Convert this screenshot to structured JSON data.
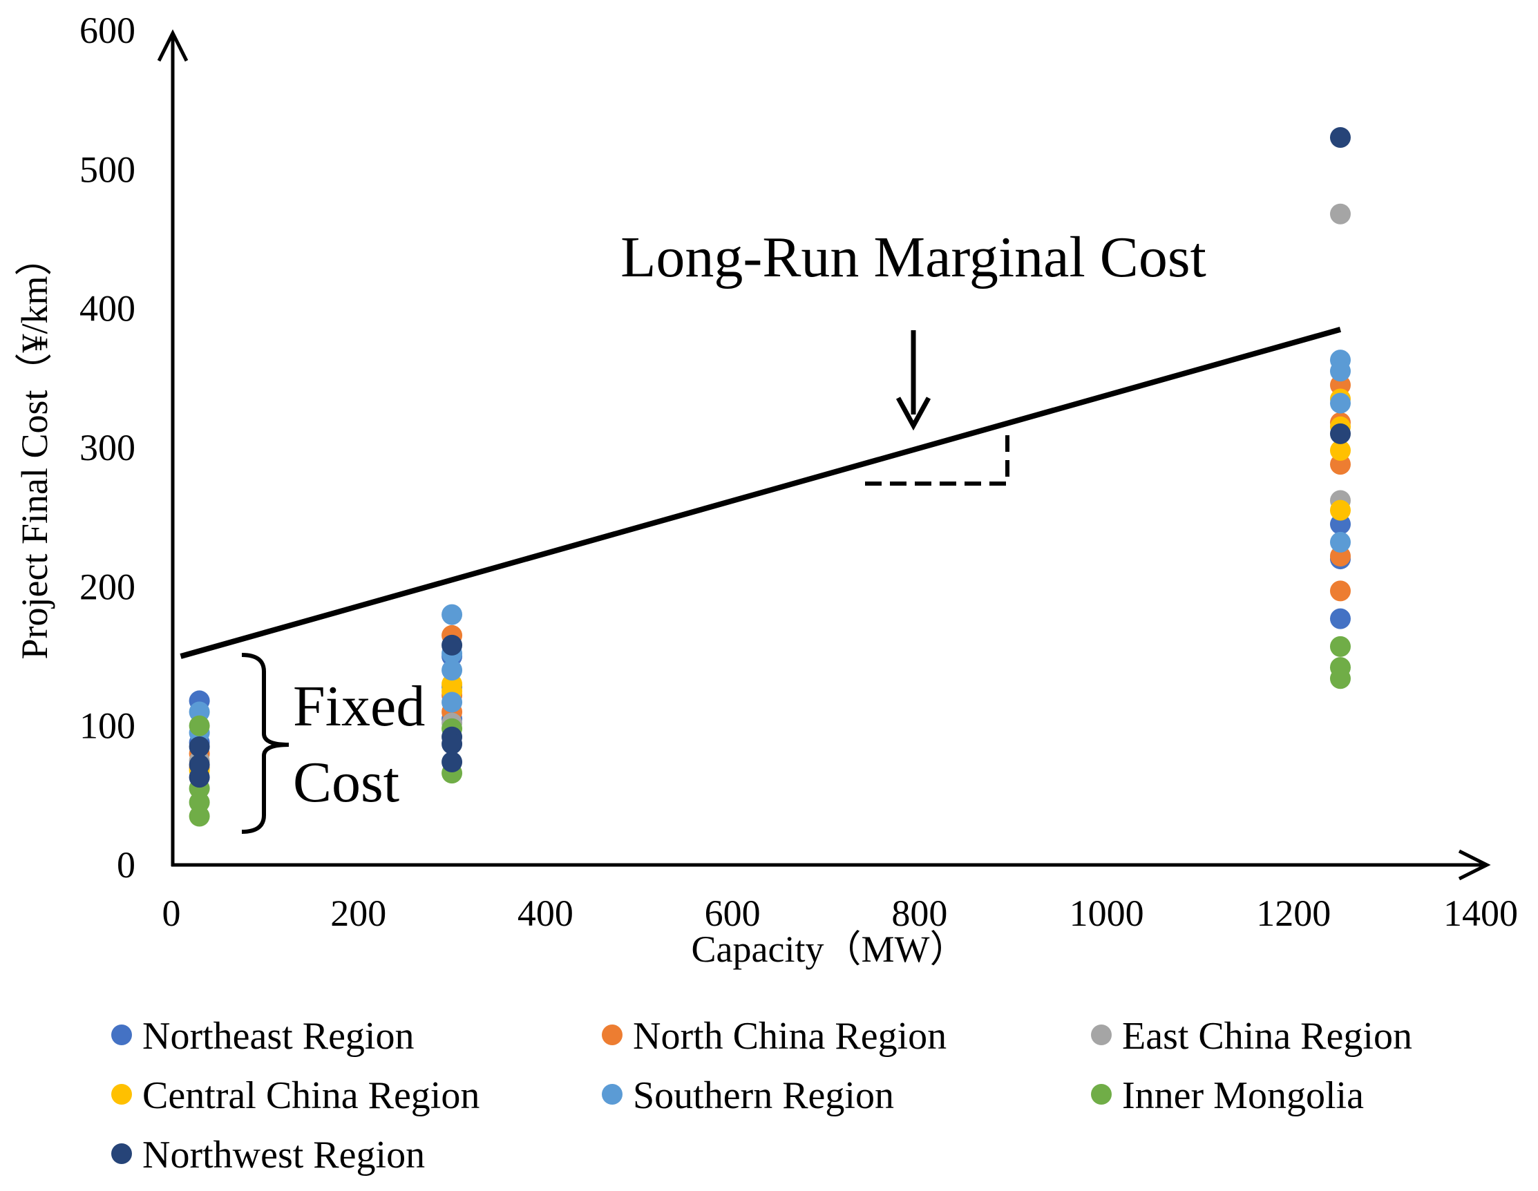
{
  "chart_data": {
    "type": "scatter",
    "xlabel": "Capacity（MW）",
    "ylabel": "Project Final Cost（¥/km）",
    "xlim": [
      0,
      1400
    ],
    "ylim": [
      0,
      600
    ],
    "x_ticks": [
      "0",
      "200",
      "400",
      "600",
      "800",
      "1000",
      "1200",
      "1400"
    ],
    "y_ticks": [
      "0",
      "100",
      "200",
      "300",
      "400",
      "500",
      "600"
    ],
    "grid": false,
    "legend_position": "bottom",
    "series": [
      {
        "name": "Northeast Region",
        "color": "#4472C4",
        "points": [
          [
            30,
            118
          ],
          [
            30,
            88
          ],
          [
            300,
            150
          ],
          [
            300,
            128
          ],
          [
            300,
            105
          ],
          [
            1250,
            245
          ],
          [
            1250,
            220
          ],
          [
            1250,
            177
          ]
        ]
      },
      {
        "name": "North China Region",
        "color": "#ED7D31",
        "points": [
          [
            30,
            80
          ],
          [
            30,
            70
          ],
          [
            300,
            165
          ],
          [
            300,
            122
          ],
          [
            300,
            110
          ],
          [
            1250,
            345
          ],
          [
            1250,
            318
          ],
          [
            1250,
            288
          ],
          [
            1250,
            222
          ],
          [
            1250,
            197
          ]
        ]
      },
      {
        "name": "East China Region",
        "color": "#A5A5A5",
        "points": [
          [
            30,
            75
          ],
          [
            300,
            102
          ],
          [
            1250,
            468
          ],
          [
            1250,
            262
          ]
        ]
      },
      {
        "name": "Central China Region",
        "color": "#FFC000",
        "points": [
          [
            30,
            68
          ],
          [
            300,
            130
          ],
          [
            300,
            125
          ],
          [
            1250,
            335
          ],
          [
            1250,
            315
          ],
          [
            1250,
            298
          ],
          [
            1250,
            255
          ]
        ]
      },
      {
        "name": "Southern Region",
        "color": "#5B9BD5",
        "points": [
          [
            30,
            110
          ],
          [
            30,
            95
          ],
          [
            300,
            180
          ],
          [
            300,
            152
          ],
          [
            300,
            140
          ],
          [
            300,
            117
          ],
          [
            1250,
            363
          ],
          [
            1250,
            355
          ],
          [
            1250,
            332
          ],
          [
            1250,
            232
          ]
        ]
      },
      {
        "name": "Inner Mongolia",
        "color": "#70AD47",
        "points": [
          [
            30,
            100
          ],
          [
            30,
            55
          ],
          [
            30,
            45
          ],
          [
            30,
            35
          ],
          [
            300,
            98
          ],
          [
            300,
            66
          ],
          [
            1250,
            157
          ],
          [
            1250,
            142
          ],
          [
            1250,
            134
          ]
        ]
      },
      {
        "name": "Northwest Region",
        "color": "#264478",
        "points": [
          [
            30,
            85
          ],
          [
            30,
            72
          ],
          [
            30,
            63
          ],
          [
            300,
            158
          ],
          [
            300,
            92
          ],
          [
            300,
            87
          ],
          [
            300,
            74
          ],
          [
            1250,
            523
          ],
          [
            1250,
            310
          ]
        ]
      }
    ],
    "lines": [
      {
        "name": "Long-Run Marginal Cost",
        "x": [
          10,
          1250
        ],
        "y": [
          150,
          385
        ]
      }
    ],
    "annotations": {
      "lrmc_label": "Long-Run Marginal Cost",
      "fixed_cost_line1": "Fixed",
      "fixed_cost_line2": "Cost"
    }
  }
}
